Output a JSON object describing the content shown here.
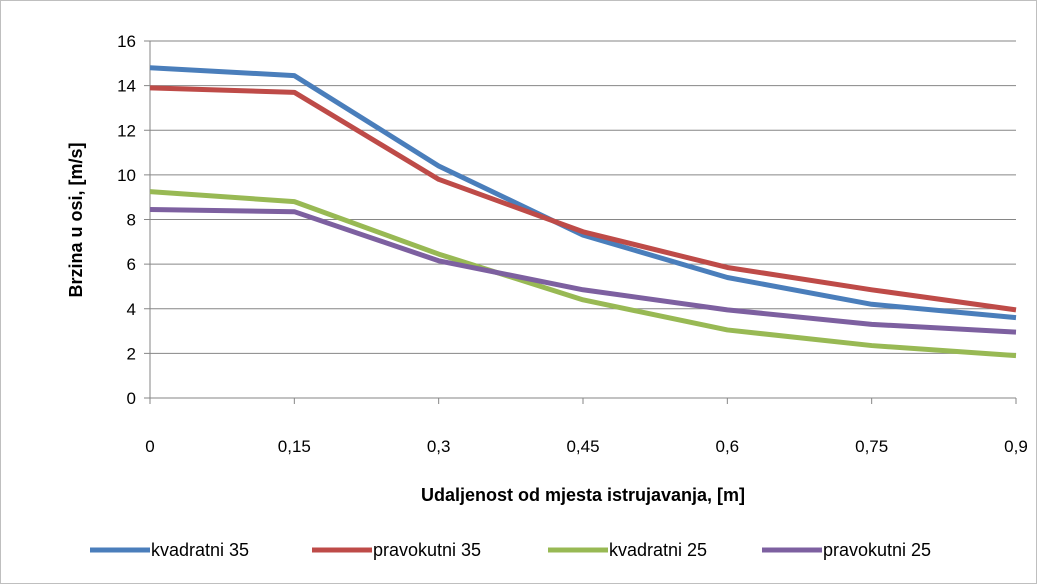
{
  "chart_data": {
    "type": "line",
    "title": "",
    "xlabel": "Udaljenost od mjesta istrujavanja,  [m]",
    "ylabel": "Brzina u osi, [m/s]",
    "categories": [
      "0",
      "0,15",
      "0,3",
      "0,45",
      "0,6",
      "0,75",
      "0,9"
    ],
    "ylim": [
      0,
      16
    ],
    "yticks": [
      0,
      2,
      4,
      6,
      8,
      10,
      12,
      14,
      16
    ],
    "grid": true,
    "legend_position": "bottom",
    "series": [
      {
        "name": "kvadratni 35",
        "color": "#4a7ebb",
        "values": [
          14.8,
          14.45,
          10.4,
          7.3,
          5.4,
          4.2,
          3.6
        ]
      },
      {
        "name": "pravokutni 35",
        "color": "#be4b48",
        "values": [
          13.9,
          13.7,
          9.8,
          7.45,
          5.85,
          4.85,
          3.95
        ]
      },
      {
        "name": "kvadratni 25",
        "color": "#98b954",
        "values": [
          9.25,
          8.8,
          6.45,
          4.4,
          3.05,
          2.35,
          1.9
        ]
      },
      {
        "name": "pravokutni 25",
        "color": "#7d60a0",
        "values": [
          8.45,
          8.35,
          6.15,
          4.85,
          3.95,
          3.3,
          2.95
        ]
      }
    ]
  }
}
